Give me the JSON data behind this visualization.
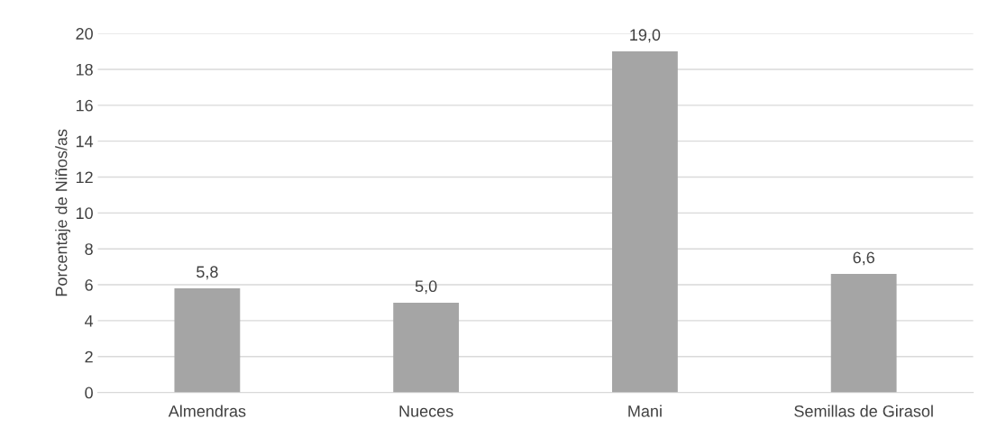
{
  "chart_data": {
    "type": "bar",
    "ylabel": "Porcentaje de Niños/as",
    "categories": [
      "Almendras",
      "Nueces",
      "Mani",
      "Semillas de Girasol"
    ],
    "values": [
      5.8,
      5.0,
      19.0,
      6.6
    ],
    "value_labels": [
      "5,8",
      "5,0",
      "19,0",
      "6,6"
    ],
    "color": "#a5a5a5",
    "ylim": [
      0,
      20
    ],
    "yticks": [
      0,
      2,
      4,
      6,
      8,
      10,
      12,
      14,
      16,
      18,
      20
    ],
    "grid": "y",
    "legend": false
  }
}
